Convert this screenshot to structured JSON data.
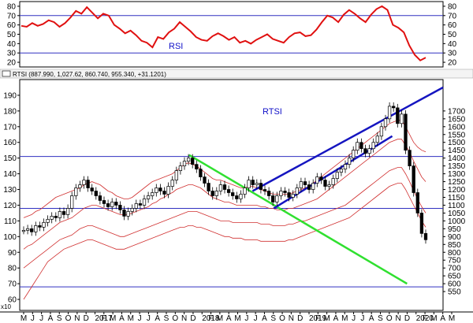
{
  "chart_data": [
    {
      "type": "line",
      "title": "RSI",
      "ylim": [
        15,
        85
      ],
      "y_ticks": [
        20,
        30,
        40,
        50,
        60,
        70,
        80
      ],
      "reference_lines": [
        30,
        70
      ],
      "colors": {
        "line": "#e01010",
        "reference": "#3030c0",
        "label": "#1010c8"
      },
      "values": [
        59,
        58,
        62,
        59,
        61,
        65,
        63,
        58,
        62,
        68,
        75,
        72,
        79,
        73,
        67,
        72,
        70,
        60,
        56,
        51,
        54,
        49,
        43,
        41,
        36,
        47,
        45,
        52,
        56,
        63,
        58,
        53,
        47,
        44,
        43,
        48,
        51,
        48,
        44,
        47,
        41,
        43,
        40,
        44,
        47,
        50,
        45,
        43,
        41,
        47,
        51,
        52,
        48,
        49,
        55,
        63,
        70,
        68,
        63,
        71,
        76,
        72,
        67,
        63,
        71,
        77,
        80,
        76,
        60,
        57,
        52,
        38,
        28,
        22,
        25
      ]
    },
    {
      "type": "line",
      "title": "RTSI",
      "header": "RTSI (887.990, 1,027.62, 860.740, 955.340, +31.1201)",
      "scale_note": "x10",
      "ylim": [
        53,
        200
      ],
      "y_ticks_left": [
        60,
        70,
        80,
        90,
        100,
        110,
        120,
        130,
        140,
        150,
        160,
        170,
        180,
        190
      ],
      "y_ticks_right": [
        550,
        600,
        650,
        700,
        750,
        800,
        850,
        900,
        950,
        1000,
        1050,
        1100,
        1150,
        1200,
        1250,
        1300,
        1350,
        1400,
        1450,
        1500,
        1550,
        1600,
        1650,
        1700
      ],
      "horizontal_lines": [
        68,
        118,
        151
      ],
      "x_labels": [
        "M",
        "J",
        "J",
        "A",
        "S",
        "O",
        "N",
        "D",
        "2017",
        "F",
        "M",
        "A",
        "M",
        "J",
        "J",
        "A",
        "S",
        "O",
        "N",
        "D",
        "2018",
        "F",
        "M",
        "A",
        "M",
        "J",
        "J",
        "A",
        "S",
        "O",
        "N",
        "D",
        "2019",
        "F",
        "M",
        "A",
        "M",
        "J",
        "J",
        "A",
        "S",
        "O",
        "N",
        "D",
        "2020",
        "F",
        "M",
        "A",
        "M"
      ],
      "year_labels": [
        "2017",
        "2018",
        "2019",
        "2020"
      ],
      "price": [
        104,
        105,
        103,
        107,
        106,
        109,
        111,
        113,
        112,
        116,
        114,
        118,
        126,
        131,
        133,
        136,
        131,
        129,
        126,
        123,
        121,
        119,
        122,
        120,
        117,
        113,
        116,
        118,
        121,
        120,
        124,
        126,
        128,
        131,
        129,
        127,
        132,
        136,
        142,
        145,
        148,
        150,
        146,
        143,
        138,
        134,
        129,
        126,
        129,
        133,
        130,
        128,
        126,
        124,
        127,
        131,
        136,
        133,
        134,
        130,
        129,
        126,
        122,
        126,
        129,
        128,
        125,
        127,
        131,
        135,
        133,
        130,
        134,
        138,
        136,
        132,
        133,
        137,
        141,
        143,
        146,
        150,
        155,
        160,
        156,
        153,
        156,
        160,
        164,
        170,
        175,
        183,
        182,
        172,
        178,
        155,
        145,
        128,
        115,
        102,
        98
      ],
      "series": [
        {
          "name": "upper band",
          "color": "#d03030",
          "values": [
            112,
            113,
            114,
            116,
            117,
            119,
            121,
            123,
            125,
            126,
            127,
            128,
            129,
            130,
            131,
            133,
            134,
            135,
            134,
            133,
            131,
            129,
            128,
            126,
            125,
            124,
            124,
            125,
            127,
            129,
            131,
            133,
            135,
            136,
            137,
            138,
            139,
            140,
            142,
            144,
            146,
            147,
            146,
            145,
            143,
            141,
            139,
            137,
            136,
            136,
            135,
            134,
            133,
            132,
            131,
            131,
            132,
            132,
            131,
            130,
            129,
            128,
            127,
            127,
            127,
            127,
            127,
            128,
            129,
            130,
            131,
            132,
            134,
            136,
            138,
            140,
            142,
            144,
            146,
            148,
            150,
            152,
            154,
            156,
            158,
            160,
            162,
            164,
            166,
            168,
            170,
            172,
            173,
            174,
            174,
            170,
            165,
            160,
            157,
            155,
            154
          ]
        },
        {
          "name": "middle band",
          "color": "#d03030",
          "values": [
            92,
            94,
            95,
            97,
            99,
            101,
            103,
            105,
            107,
            109,
            110,
            111,
            112,
            114,
            116,
            118,
            119,
            120,
            120,
            119,
            118,
            117,
            116,
            115,
            114,
            114,
            114,
            115,
            116,
            117,
            118,
            119,
            121,
            122,
            124,
            125,
            127,
            128,
            130,
            131,
            132,
            133,
            133,
            132,
            131,
            129,
            127,
            125,
            124,
            123,
            122,
            122,
            121,
            120,
            120,
            120,
            120,
            120,
            120,
            119,
            119,
            118,
            118,
            117,
            117,
            117,
            118,
            118,
            119,
            120,
            121,
            122,
            123,
            124,
            126,
            128,
            130,
            132,
            134,
            136,
            138,
            140,
            142,
            144,
            146,
            148,
            150,
            152,
            154,
            156,
            158,
            160,
            161,
            162,
            162,
            158,
            154,
            148,
            143,
            138,
            135
          ]
        },
        {
          "name": "lower band",
          "color": "#d03030",
          "values": [
            80,
            82,
            84,
            86,
            88,
            90,
            92,
            94,
            96,
            98,
            99,
            100,
            101,
            103,
            105,
            106,
            107,
            107,
            106,
            105,
            104,
            103,
            102,
            101,
            100,
            100,
            101,
            102,
            103,
            104,
            105,
            106,
            107,
            108,
            109,
            110,
            111,
            112,
            113,
            114,
            115,
            116,
            116,
            116,
            115,
            114,
            113,
            112,
            111,
            110,
            110,
            110,
            109,
            109,
            109,
            109,
            109,
            109,
            109,
            108,
            108,
            108,
            107,
            107,
            107,
            107,
            108,
            108,
            109,
            110,
            110,
            111,
            112,
            113,
            114,
            115,
            116,
            117,
            118,
            119,
            120,
            122,
            124,
            126,
            128,
            130,
            132,
            134,
            136,
            138,
            140,
            142,
            143,
            144,
            144,
            140,
            135,
            129,
            124,
            119,
            115
          ]
        },
        {
          "name": "lowest band",
          "color": "#d03030",
          "values": [
            60,
            64,
            68,
            72,
            76,
            80,
            84,
            86,
            88,
            90,
            92,
            93,
            94,
            95,
            96,
            97,
            98,
            98,
            97,
            96,
            95,
            94,
            93,
            92,
            92,
            92,
            93,
            94,
            95,
            96,
            97,
            98,
            99,
            100,
            101,
            102,
            103,
            104,
            105,
            106,
            106,
            107,
            107,
            106,
            106,
            105,
            104,
            103,
            102,
            101,
            100,
            100,
            99,
            99,
            99,
            98,
            98,
            98,
            98,
            97,
            97,
            97,
            97,
            97,
            97,
            97,
            98,
            98,
            99,
            100,
            101,
            102,
            103,
            104,
            105,
            106,
            107,
            108,
            109,
            110,
            111,
            112,
            114,
            116,
            118,
            120,
            122,
            124,
            126,
            128,
            130,
            132,
            133,
            134,
            134,
            130,
            125,
            120,
            115,
            110,
            106
          ]
        }
      ],
      "trend_lines": [
        {
          "name": "downtrend",
          "color": "#30e030",
          "from": [
            0.4,
            152
          ],
          "to": [
            0.915,
            70
          ]
        },
        {
          "name": "channel upper",
          "color": "#1515c0",
          "from": [
            0.55,
            129
          ],
          "to": [
            1.0,
            195
          ]
        },
        {
          "name": "channel lower",
          "color": "#1515c0",
          "from": [
            0.6,
            118
          ],
          "to": [
            0.88,
            164
          ]
        }
      ]
    }
  ]
}
